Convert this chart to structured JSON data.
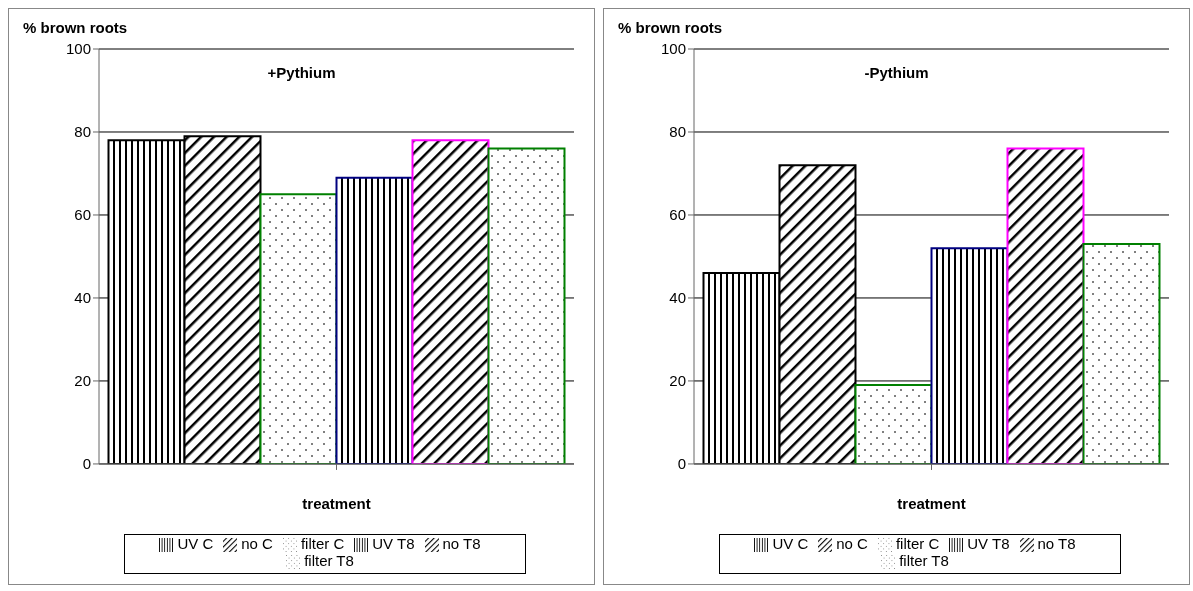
{
  "chart_data": [
    {
      "type": "bar",
      "title": "+Pythium",
      "xlabel": "treatment",
      "ylabel": "% brown roots",
      "categories": [
        null
      ],
      "ylim": [
        0,
        100
      ],
      "yticks": [
        0,
        20,
        40,
        60,
        80,
        100
      ],
      "grid": "y",
      "legend": "bottom",
      "series": [
        {
          "name": "UV C",
          "color": "#000000",
          "values": [
            78
          ]
        },
        {
          "name": "no C",
          "color": "#000000",
          "values": [
            79
          ]
        },
        {
          "name": "filter C",
          "color": "#008000",
          "values": [
            65
          ]
        },
        {
          "name": "UV T8",
          "color": "#000080",
          "values": [
            69
          ]
        },
        {
          "name": "no T8",
          "color": "#ff00ff",
          "values": [
            78
          ]
        },
        {
          "name": "filter T8",
          "color": "#008000",
          "values": [
            76
          ]
        }
      ]
    },
    {
      "type": "bar",
      "title": "-Pythium",
      "xlabel": "treatment",
      "ylabel": "% brown roots",
      "categories": [
        null
      ],
      "ylim": [
        0,
        100
      ],
      "yticks": [
        0,
        20,
        40,
        60,
        80,
        100
      ],
      "grid": "y",
      "legend": "bottom",
      "series": [
        {
          "name": "UV C",
          "color": "#000000",
          "values": [
            46
          ]
        },
        {
          "name": "no C",
          "color": "#000000",
          "values": [
            72
          ]
        },
        {
          "name": "filter C",
          "color": "#008000",
          "values": [
            19
          ]
        },
        {
          "name": "UV T8",
          "color": "#000080",
          "values": [
            52
          ]
        },
        {
          "name": "no T8",
          "color": "#ff00ff",
          "values": [
            76
          ]
        },
        {
          "name": "filter T8",
          "color": "#008000",
          "values": [
            53
          ]
        }
      ]
    }
  ]
}
